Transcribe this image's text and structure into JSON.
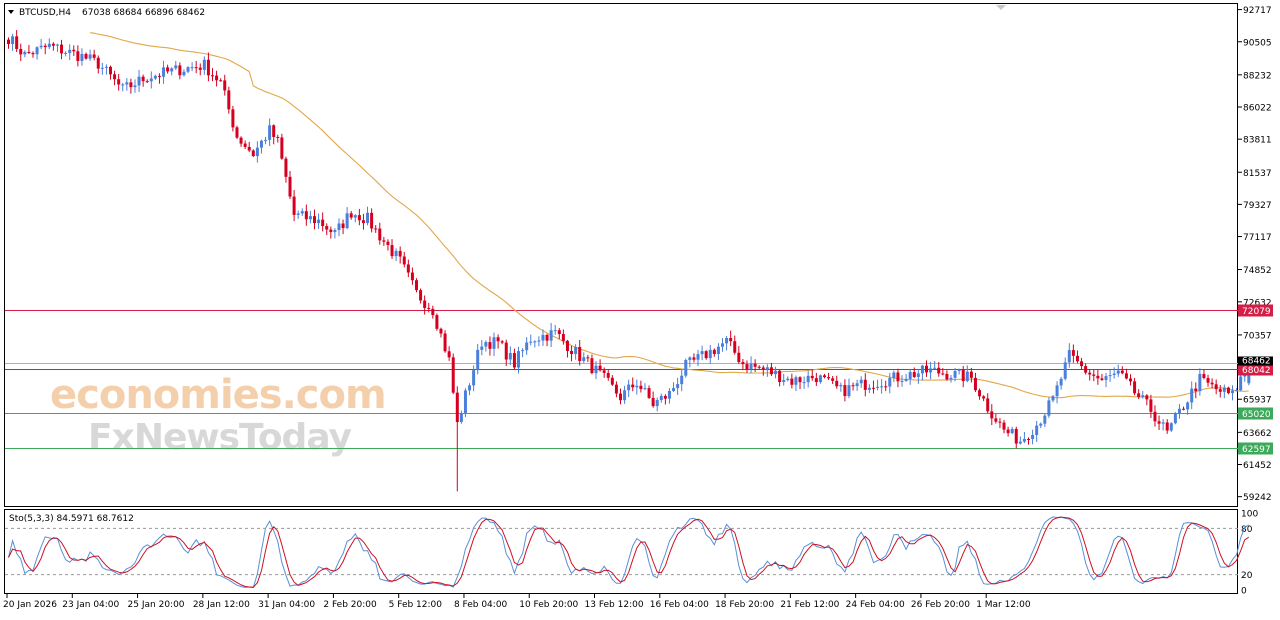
{
  "header": {
    "symbol": "BTCUSD,H4",
    "ohlc": "67038 68684 66896 68462",
    "menu_icon": "triangle-down-icon"
  },
  "watermark": {
    "line1": "economies.com",
    "line2": "FxNewsToday"
  },
  "colors": {
    "bull": "#4a7fdc",
    "bear": "#d5001f",
    "ma": "#e2a74a",
    "resistance": "#d41e46",
    "support": "#3caa5a",
    "stoch_main": "#5a8fd8",
    "stoch_signal": "#cc1122",
    "grid": "#9a9a9a",
    "watermark_orange": "#f3c79d",
    "watermark_gray": "#c4c4c4"
  },
  "price_axis": {
    "ticks": [
      "92717",
      "90505",
      "88232",
      "86022",
      "83811",
      "81537",
      "79327",
      "77117",
      "74852",
      "72632",
      "70357",
      "68147",
      "65937",
      "63662",
      "61452",
      "59242"
    ],
    "range": [
      58600,
      93100
    ]
  },
  "levels": [
    {
      "label": "72079",
      "value": 72079,
      "kind": "resistance"
    },
    {
      "label": "68042",
      "value": 68042,
      "kind": "resistance"
    },
    {
      "label": "65020",
      "value": 65020,
      "kind": "support"
    },
    {
      "label": "62597",
      "value": 62597,
      "kind": "support"
    }
  ],
  "current_price": {
    "label": "68462",
    "value": 68462
  },
  "time_axis": {
    "labels": [
      "20 Jan 2026",
      "23 Jan 04:00",
      "25 Jan 20:00",
      "28 Jan 12:00",
      "31 Jan 04:00",
      "2 Feb 20:00",
      "5 Feb 12:00",
      "8 Feb 04:00",
      "10 Feb 20:00",
      "13 Feb 12:00",
      "16 Feb 04:00",
      "18 Feb 20:00",
      "21 Feb 12:00",
      "24 Feb 04:00",
      "26 Feb 20:00",
      "1 Mar 12:00"
    ],
    "bars_per_label": 16
  },
  "stochastic": {
    "label": "Sto(5,3,3) 84.5971 68.7612",
    "axis_ticks": [
      "100",
      "80",
      "20",
      "0"
    ],
    "levels": [
      80,
      20
    ]
  },
  "chart_data": {
    "type": "candlestick",
    "symbol": "BTCUSD",
    "timeframe": "H4",
    "ylim": [
      58600,
      93100
    ],
    "key_closes": [
      {
        "x": "20 Jan 2026",
        "close": 90500
      },
      {
        "x": "23 Jan 04:00",
        "close": 89400
      },
      {
        "x": "25 Jan 20:00",
        "close": 87800
      },
      {
        "x": "28 Jan 12:00",
        "close": 88300
      },
      {
        "x": "31 Jan 04:00",
        "close": 78500
      },
      {
        "x": "2 Feb 20:00",
        "close": 76500
      },
      {
        "x": "5 Feb 12:00",
        "close": 63500
      },
      {
        "x": "8 Feb 04:00",
        "close": 70500
      },
      {
        "x": "10 Feb 20:00",
        "close": 66300
      },
      {
        "x": "13 Feb 12:00",
        "close": 69400
      },
      {
        "x": "16 Feb 04:00",
        "close": 67500
      },
      {
        "x": "18 Feb 20:00",
        "close": 67800
      },
      {
        "x": "21 Feb 12:00",
        "close": 66800
      },
      {
        "x": "24 Feb 04:00",
        "close": 65500
      },
      {
        "x": "26 Feb 20:00",
        "close": 64500
      },
      {
        "x": "1 Mar 12:00",
        "close": 68462
      }
    ],
    "last_bar": {
      "open": 67038,
      "high": 68684,
      "low": 66896,
      "close": 68462
    },
    "moving_average": "single MA line overlay",
    "stochastic": {
      "params": "5,3,3",
      "main": 84.5971,
      "signal": 68.7612
    }
  }
}
